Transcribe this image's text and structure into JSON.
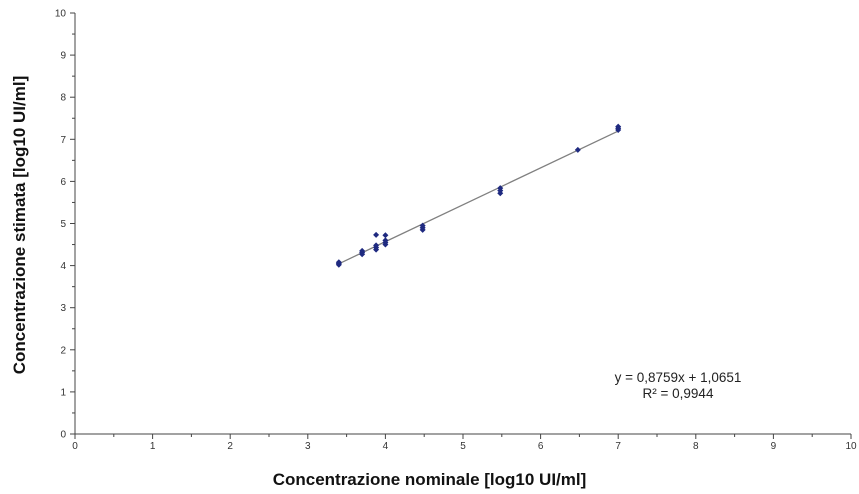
{
  "chart_data": {
    "type": "scatter",
    "title": "",
    "xlabel": "Concentrazione nominale [log10 UI/ml]",
    "ylabel": "Concentrazione stimata [log10 UI/ml]",
    "xlim": [
      0,
      10
    ],
    "ylim": [
      0,
      10
    ],
    "x_ticks": [
      "0",
      "1",
      "2",
      "3",
      "4",
      "5",
      "6",
      "7",
      "8",
      "9",
      "10"
    ],
    "y_ticks": [
      "0",
      "1",
      "2",
      "3",
      "4",
      "5",
      "6",
      "7",
      "8",
      "9",
      "10"
    ],
    "grid": false,
    "marker_color": "#1f2a80",
    "trendline_color": "#808080",
    "points": [
      {
        "x": 3.4,
        "y": 4.02
      },
      {
        "x": 3.4,
        "y": 4.05
      },
      {
        "x": 3.4,
        "y": 4.08
      },
      {
        "x": 3.7,
        "y": 4.27
      },
      {
        "x": 3.7,
        "y": 4.31
      },
      {
        "x": 3.7,
        "y": 4.35
      },
      {
        "x": 3.88,
        "y": 4.38
      },
      {
        "x": 3.88,
        "y": 4.43
      },
      {
        "x": 3.88,
        "y": 4.48
      },
      {
        "x": 3.88,
        "y": 4.73
      },
      {
        "x": 4.0,
        "y": 4.5
      },
      {
        "x": 4.0,
        "y": 4.55
      },
      {
        "x": 4.0,
        "y": 4.6
      },
      {
        "x": 4.0,
        "y": 4.72
      },
      {
        "x": 4.48,
        "y": 4.85
      },
      {
        "x": 4.48,
        "y": 4.9
      },
      {
        "x": 4.48,
        "y": 4.95
      },
      {
        "x": 5.48,
        "y": 5.72
      },
      {
        "x": 5.48,
        "y": 5.78
      },
      {
        "x": 5.48,
        "y": 5.84
      },
      {
        "x": 6.48,
        "y": 6.75
      },
      {
        "x": 7.0,
        "y": 7.22
      },
      {
        "x": 7.0,
        "y": 7.26
      },
      {
        "x": 7.0,
        "y": 7.3
      }
    ],
    "trendline": {
      "slope": 0.8759,
      "intercept": 1.0651,
      "x_range": [
        3.4,
        7.0
      ],
      "equation": "y = 0,8759x + 1,0651",
      "r_squared": "R² = 0,9944"
    }
  }
}
